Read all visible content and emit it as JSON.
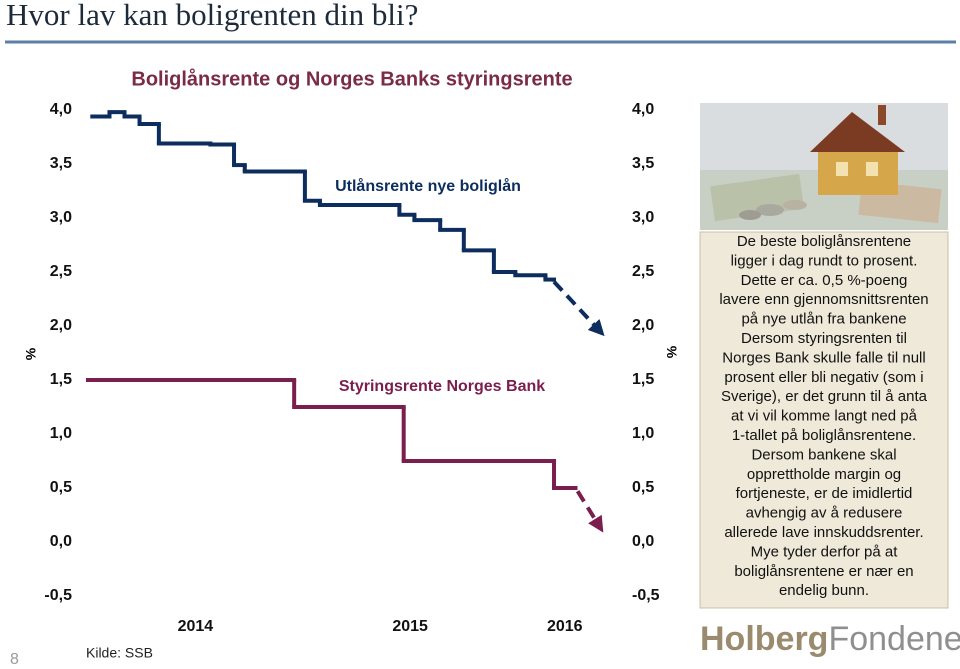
{
  "title": "Hvor lav kan boligrenten din bli?",
  "page_number": "8",
  "chart_data": {
    "type": "line",
    "step": "post",
    "title": "Boliglånsrente og Norges Banks styringsrente",
    "ylabel": "%",
    "y2label": "%",
    "ylim": [
      -0.5,
      4.0
    ],
    "yticks": [
      {
        "value": 4.0,
        "label": "4,0"
      },
      {
        "value": 3.5,
        "label": "3,5"
      },
      {
        "value": 3.0,
        "label": "3,0"
      },
      {
        "value": 2.5,
        "label": "2,5"
      },
      {
        "value": 2.0,
        "label": "2,0"
      },
      {
        "value": 1.5,
        "label": "1,5"
      },
      {
        "value": 1.0,
        "label": "1,0"
      },
      {
        "value": 0.5,
        "label": "0,5"
      },
      {
        "value": 0.0,
        "label": "0,0"
      },
      {
        "value": -0.5,
        "label": "-0,5"
      }
    ],
    "y2lim": [
      -0.5,
      4.0
    ],
    "y2ticks": [
      {
        "value": 4.0,
        "label": "4,0"
      },
      {
        "value": 3.5,
        "label": "3,5"
      },
      {
        "value": 3.0,
        "label": "3,0"
      },
      {
        "value": 2.5,
        "label": "2,5"
      },
      {
        "value": 2.0,
        "label": "2,0"
      },
      {
        "value": 1.5,
        "label": "1,5"
      },
      {
        "value": 1.0,
        "label": "1,0"
      },
      {
        "value": 0.5,
        "label": "0,5"
      },
      {
        "value": 0.0,
        "label": "0,0"
      },
      {
        "value": -0.5,
        "label": "-0,5"
      }
    ],
    "xlim": [
      2014,
      2016.44
    ],
    "xticks": [
      2014,
      2015,
      2016
    ],
    "series": [
      {
        "name": "Utlånsrente nye boliglån",
        "color": "#0c2d5e",
        "x": [
          2014.02,
          2014.1,
          2014.17,
          2014.24,
          2014.33,
          2014.57,
          2014.68,
          2014.73,
          2015.01,
          2015.08,
          2015.45,
          2015.52,
          2015.64,
          2015.75,
          2015.89,
          2015.99,
          2016.13,
          2016.17
        ],
        "values": [
          3.94,
          3.98,
          3.94,
          3.87,
          3.69,
          3.68,
          3.49,
          3.43,
          3.16,
          3.12,
          3.03,
          2.98,
          2.89,
          2.7,
          2.5,
          2.47,
          2.43,
          2.41
        ]
      },
      {
        "name": "Styringsrente Norges Bank",
        "color": "#7a1e4e",
        "x": [
          2014.0,
          2014.96,
          2015.47,
          2016.17,
          2016.27
        ],
        "values": [
          1.5,
          1.25,
          0.75,
          0.5,
          0.5
        ]
      }
    ],
    "projections": [
      {
        "color": "#0c2d5e",
        "x": [
          2016.17,
          2016.38
        ],
        "values": [
          2.41,
          1.96
        ]
      },
      {
        "color": "#7a1e4e",
        "x": [
          2016.28,
          2016.38
        ],
        "values": [
          0.47,
          0.15
        ]
      }
    ],
    "source": "Kilde: SSB"
  },
  "panel": {
    "lines": [
      "De beste boliglånsrentene",
      "ligger i dag rundt to prosent.",
      "Dette er ca. 0,5 %-poeng",
      "lavere enn gjennomsnittsrenten",
      "på nye utlån fra bankene",
      "Dersom styringsrenten til",
      "Norges Bank skulle falle til null",
      "prosent eller bli negativ (som i",
      "Sverige), er det grunn til å anta",
      "at vi vil komme langt ned på",
      "1-tallet på boliglånsrentene.",
      "Dersom bankene skal",
      "opprettholde margin og",
      "fortjeneste, er de imidlertid",
      "avhengig av å redusere",
      "allerede lave innskuddsrenter.",
      "Mye tyder derfor på at",
      "boliglånsrentene er nær en",
      "endelig bunn."
    ]
  },
  "logo": {
    "first": "Holberg",
    "second": "Fondene"
  }
}
